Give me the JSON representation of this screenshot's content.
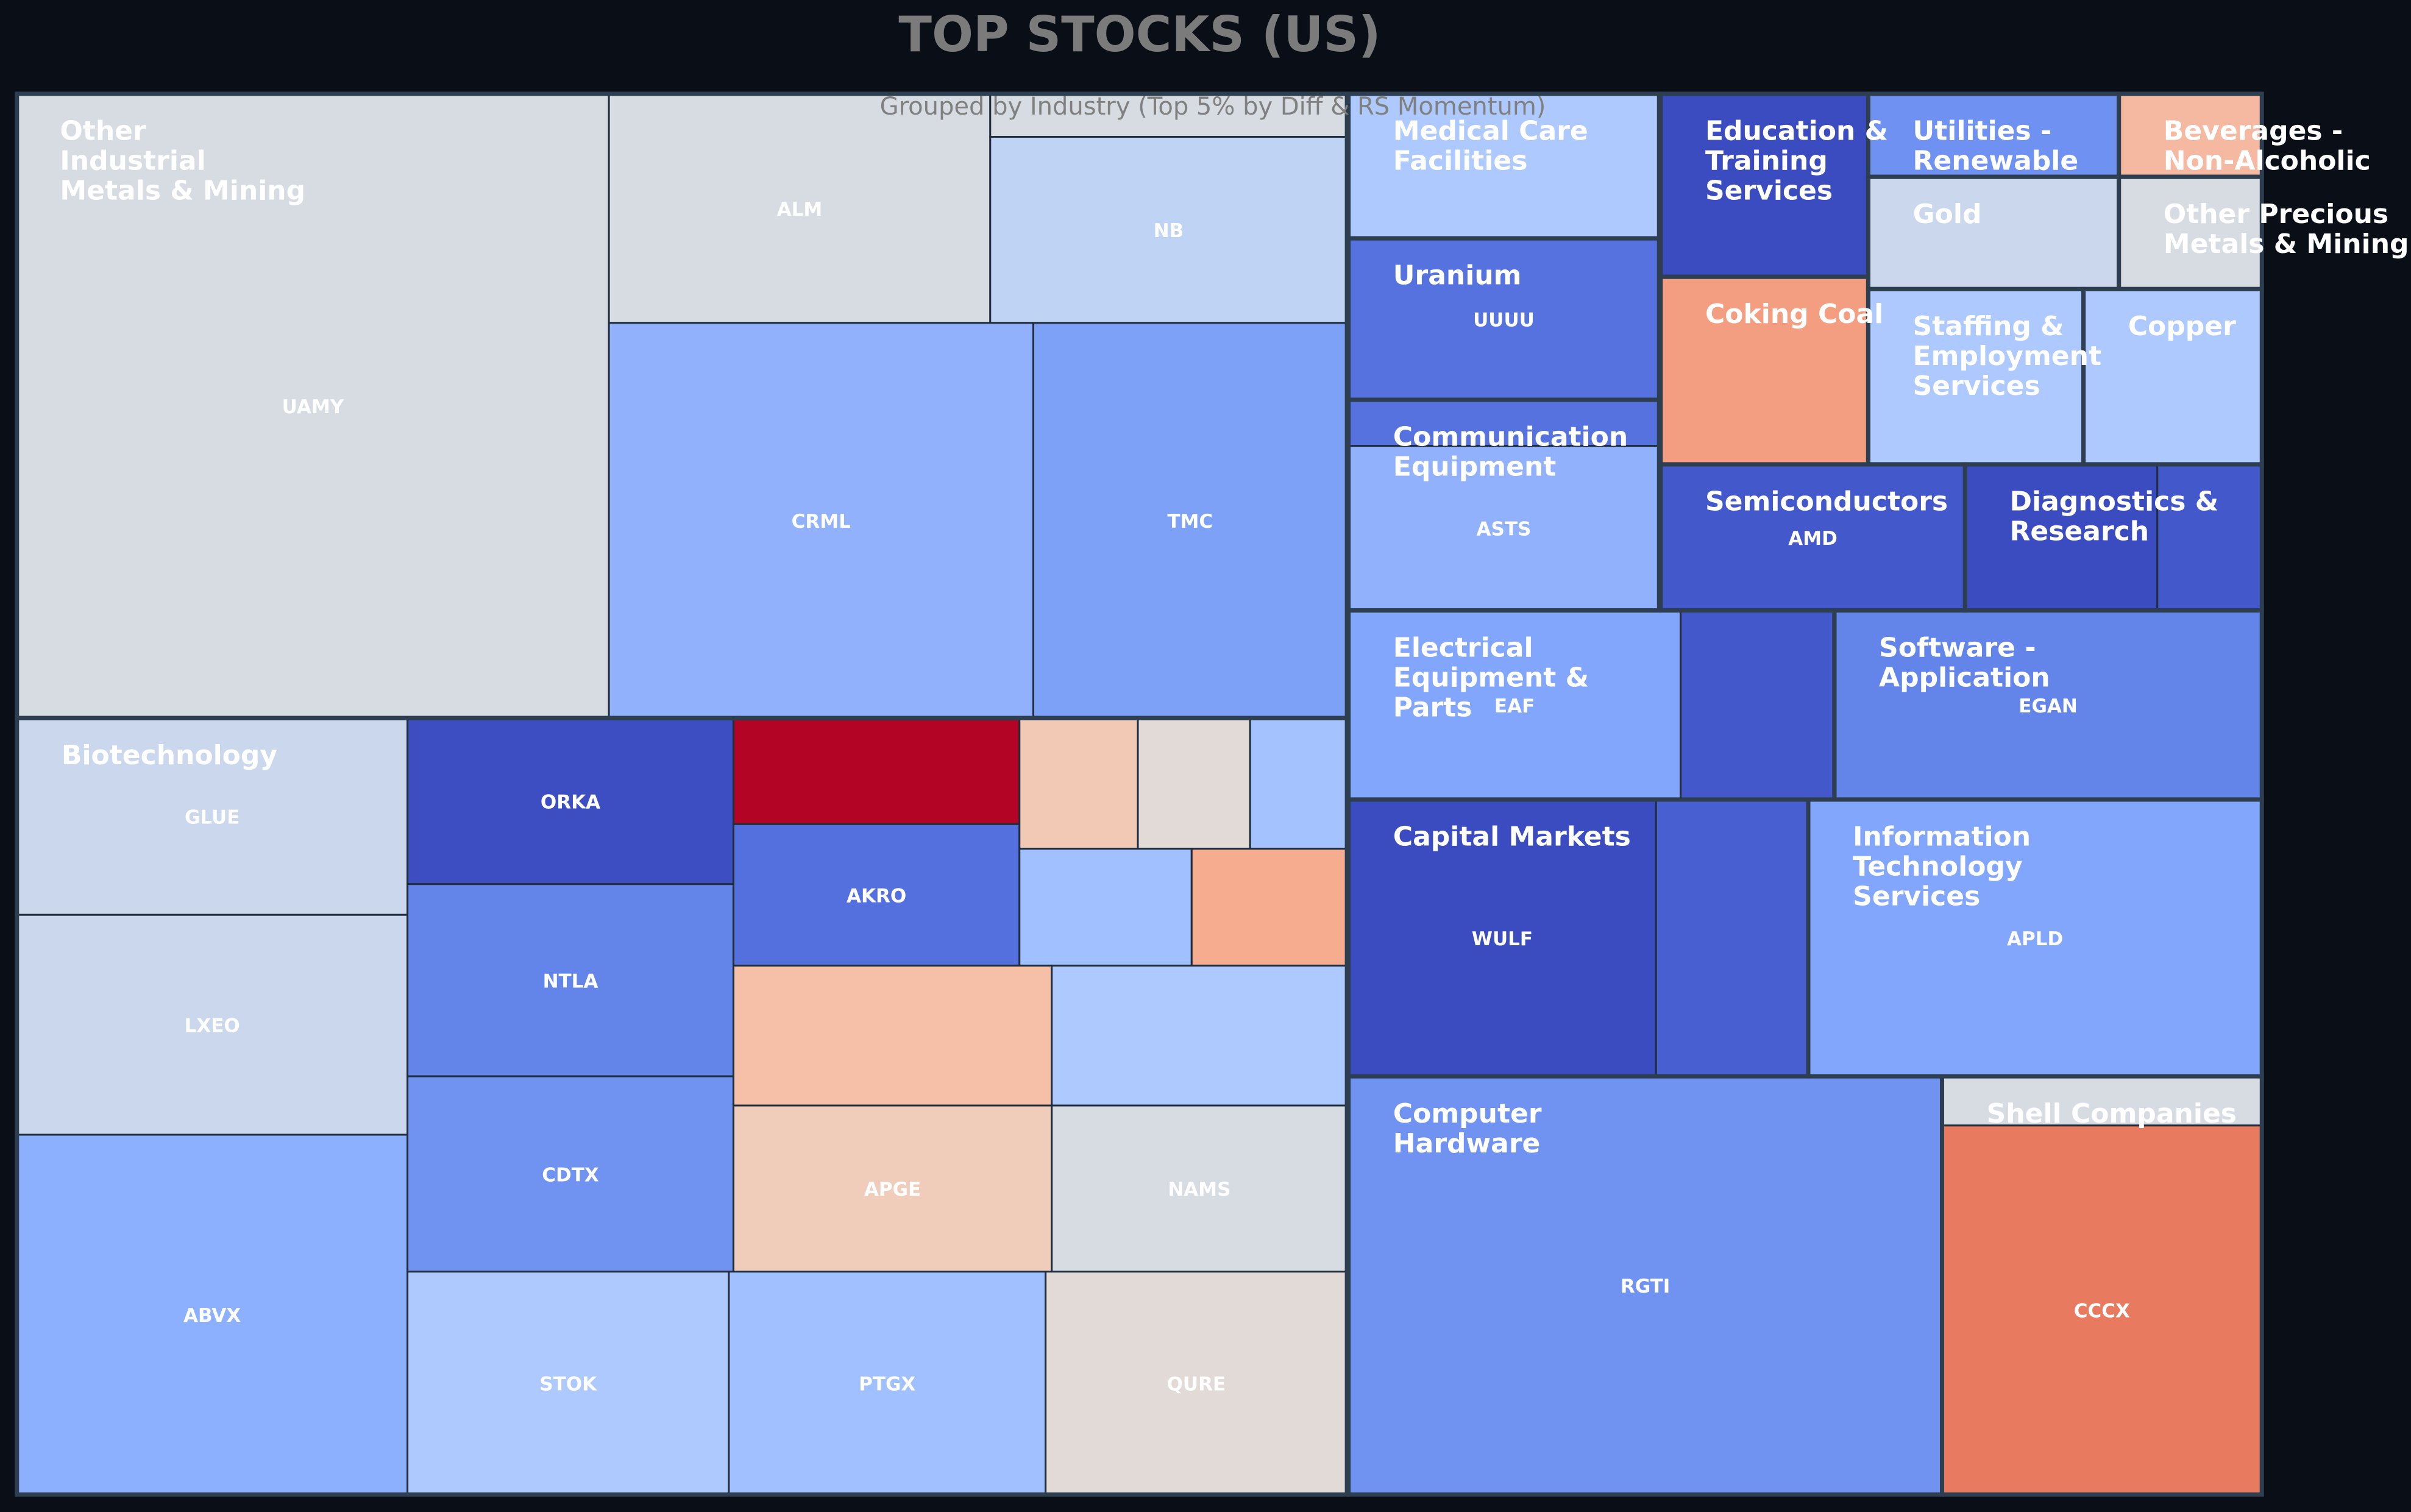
{
  "title": "TOP STOCKS (US)",
  "subtitle": "Grouped by Industry (Top 5% by Diff & RS Momentum)",
  "colors": {
    "background": "#0a0e17",
    "border": "#2c3e50",
    "cell_text": "#ffffff",
    "title_text": "#7b7b7b"
  },
  "chart_data": {
    "type": "treemap",
    "title": "TOP STOCKS (US)",
    "subtitle": "Grouped by Industry (Top 5% by Diff & RS Momentum)",
    "groups": [
      {
        "label": "Other Industrial Metals & Mining",
        "tiles": [
          {
            "ticker": "UAMY",
            "color": "#d7dbe2"
          },
          {
            "ticker": "ALM",
            "color": "#d7dbe2"
          },
          {
            "ticker": "",
            "color": "#d7dbe2"
          },
          {
            "ticker": "NB",
            "color": "#bfd3f4"
          },
          {
            "ticker": "CRML",
            "color": "#91b1fc"
          },
          {
            "ticker": "TMC",
            "color": "#7ea1f8"
          }
        ]
      },
      {
        "label": "Biotechnology",
        "tiles": [
          {
            "ticker": "GLUE",
            "color": "#cad7ec"
          },
          {
            "ticker": "LXEO",
            "color": "#cad7ec"
          },
          {
            "ticker": "ABVX",
            "color": "#8db0fe"
          },
          {
            "ticker": "ORKA",
            "color": "#3c4ec2"
          },
          {
            "ticker": "NTLA",
            "color": "#6384e9"
          },
          {
            "ticker": "CDTX",
            "color": "#7092f1"
          },
          {
            "ticker": "STOK",
            "color": "#adc9fd"
          },
          {
            "ticker": "PTGX",
            "color": "#a1c0ff"
          },
          {
            "ticker": "",
            "color": "#b40426"
          },
          {
            "ticker": "AKRO",
            "color": "#5470de"
          },
          {
            "ticker": "",
            "color": "#f2c9b4"
          },
          {
            "ticker": "",
            "color": "#e1dad6"
          },
          {
            "ticker": "",
            "color": "#a3c2fe"
          },
          {
            "ticker": "",
            "color": "#a1c0ff"
          },
          {
            "ticker": "",
            "color": "#f6ad8f"
          },
          {
            "ticker": "",
            "color": "#f5c0a7"
          },
          {
            "ticker": "",
            "color": "#adc9fd"
          },
          {
            "ticker": "APGE",
            "color": "#f0cdbb"
          },
          {
            "ticker": "NAMS",
            "color": "#d7dbe2"
          },
          {
            "ticker": "QURE",
            "color": "#e1dad6"
          }
        ]
      },
      {
        "label": "Medical Care Facilities",
        "tiles": [
          {
            "ticker": "",
            "color": "#adc9fd"
          }
        ]
      },
      {
        "label": "Uranium",
        "tiles": [
          {
            "ticker": "UUUU",
            "color": "#5572df"
          }
        ]
      },
      {
        "label": "Communication Equipment",
        "tiles": [
          {
            "ticker": "",
            "color": "#5572df"
          },
          {
            "ticker": "ASTS",
            "color": "#91b1fc"
          }
        ]
      },
      {
        "label": "Education & Training Services",
        "tiles": [
          {
            "ticker": "",
            "color": "#3b4cc0"
          }
        ]
      },
      {
        "label": "Coking Coal",
        "tiles": [
          {
            "ticker": "",
            "color": "#f39e80"
          }
        ]
      },
      {
        "label": "Utilities - Renewable",
        "tiles": [
          {
            "ticker": "",
            "color": "#6f92f2"
          }
        ]
      },
      {
        "label": "Beverages - Non-Alcoholic",
        "tiles": [
          {
            "ticker": "",
            "color": "#f5b8a0"
          }
        ]
      },
      {
        "label": "Gold",
        "tiles": [
          {
            "ticker": "",
            "color": "#cad7ec"
          }
        ]
      },
      {
        "label": "Other Precious Metals & Mining",
        "tiles": [
          {
            "ticker": "",
            "color": "#d7dbe2"
          }
        ]
      },
      {
        "label": "Staffing & Employment Services",
        "tiles": [
          {
            "ticker": "",
            "color": "#adc9fd"
          }
        ]
      },
      {
        "label": "Copper",
        "tiles": [
          {
            "ticker": "",
            "color": "#adc9fd"
          }
        ]
      },
      {
        "label": "Semiconductors",
        "tiles": [
          {
            "ticker": "AMD",
            "color": "#4358cb"
          }
        ]
      },
      {
        "label": "Diagnostics & Research",
        "tiles": [
          {
            "ticker": "",
            "color": "#3b4cc0"
          },
          {
            "ticker": "",
            "color": "#4358cb"
          }
        ]
      },
      {
        "label": "Electrical Equipment & Parts",
        "tiles": [
          {
            "ticker": "EAF",
            "color": "#82a6fb"
          },
          {
            "ticker": "",
            "color": "#4358cb"
          }
        ]
      },
      {
        "label": "Software - Application",
        "tiles": [
          {
            "ticker": "EGAN",
            "color": "#6384e9"
          }
        ]
      },
      {
        "label": "Capital Markets",
        "tiles": [
          {
            "ticker": "WULF",
            "color": "#3b4cc0"
          },
          {
            "ticker": "",
            "color": "#485fd1"
          }
        ]
      },
      {
        "label": "Information Technology Services",
        "tiles": [
          {
            "ticker": "APLD",
            "color": "#82a6fb"
          }
        ]
      },
      {
        "label": "Computer Hardware",
        "tiles": [
          {
            "ticker": "RGTI",
            "color": "#7092f1"
          }
        ]
      },
      {
        "label": "Shell Companies",
        "tiles": [
          {
            "ticker": "",
            "color": "#d7dbe2"
          },
          {
            "ticker": "CCCX",
            "color": "#e87a5f"
          }
        ]
      }
    ]
  }
}
